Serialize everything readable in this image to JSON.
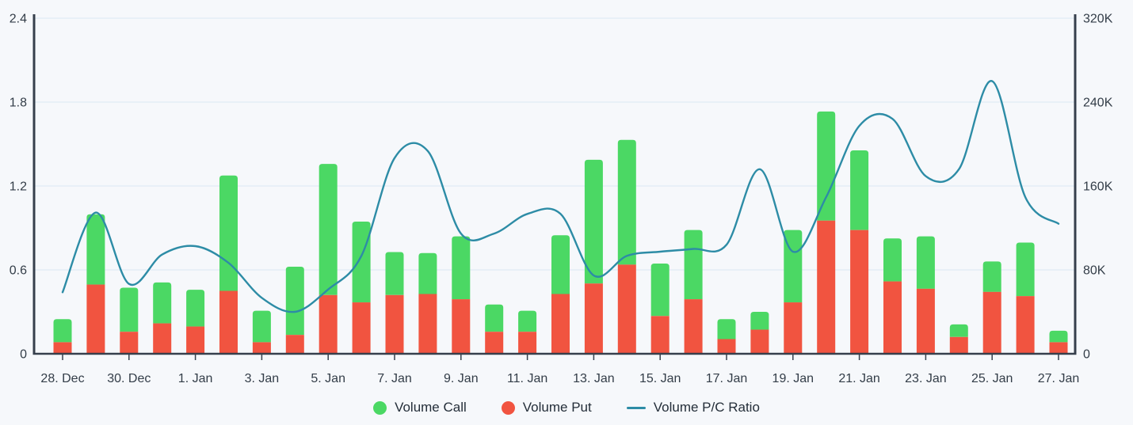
{
  "chart_data": {
    "type": "combo",
    "title": "",
    "categories": [
      "28. Dec",
      "29. Dec",
      "30. Dec",
      "31. Dec",
      "1. Jan",
      "2. Jan",
      "3. Jan",
      "4. Jan",
      "5. Jan",
      "6. Jan",
      "7. Jan",
      "8. Jan",
      "9. Jan",
      "10. Jan",
      "11. Jan",
      "12. Jan",
      "13. Jan",
      "14. Jan",
      "15. Jan",
      "16. Jan",
      "17. Jan",
      "18. Jan",
      "19. Jan",
      "20. Jan",
      "21. Jan",
      "22. Jan",
      "23. Jan",
      "24. Jan",
      "25. Jan",
      "26. Jan",
      "27. Jan"
    ],
    "x_tick_labels": [
      "28. Dec",
      "30. Dec",
      "1. Jan",
      "3. Jan",
      "5. Jan",
      "7. Jan",
      "9. Jan",
      "11. Jan",
      "13. Jan",
      "15. Jan",
      "17. Jan",
      "19. Jan",
      "21. Jan",
      "23. Jan",
      "25. Jan",
      "27. Jan"
    ],
    "series": [
      {
        "name": "Volume Call",
        "type": "bar",
        "stack": "volume",
        "axis": "right",
        "unit": "thousands",
        "color": "#4bd864",
        "values": [
          22,
          67,
          42,
          39,
          35,
          110,
          30,
          65,
          125,
          77,
          41,
          39,
          60,
          26,
          20,
          56,
          118,
          119,
          50,
          66,
          19,
          17,
          69,
          104,
          76,
          41,
          50,
          12,
          29,
          51,
          11
        ]
      },
      {
        "name": "Volume Put",
        "type": "bar",
        "stack": "volume",
        "axis": "right",
        "unit": "thousands",
        "color": "#f15440",
        "values": [
          11,
          66,
          21,
          29,
          26,
          60,
          11,
          18,
          56,
          49,
          56,
          57,
          52,
          21,
          21,
          57,
          67,
          85,
          36,
          52,
          14,
          23,
          49,
          127,
          118,
          69,
          62,
          16,
          59,
          55,
          11
        ]
      },
      {
        "name": "Volume P/C Ratio",
        "type": "line",
        "axis": "left",
        "color": "#2d8ca6",
        "values": [
          0.44,
          1.01,
          0.5,
          0.71,
          0.77,
          0.65,
          0.4,
          0.3,
          0.46,
          0.7,
          1.4,
          1.45,
          0.86,
          0.86,
          1.0,
          1.0,
          0.56,
          0.7,
          0.73,
          0.75,
          0.78,
          1.32,
          0.73,
          1.12,
          1.63,
          1.68,
          1.27,
          1.32,
          1.95,
          1.12,
          0.93
        ]
      }
    ],
    "left_axis": {
      "min": 0,
      "max": 2.4,
      "tick_labels": [
        "0",
        "0.6",
        "1.2",
        "1.8",
        "2.4"
      ]
    },
    "right_axis": {
      "min": 0,
      "max": 320000,
      "tick_labels": [
        "0",
        "80K",
        "160K",
        "240K",
        "320K"
      ]
    },
    "legend": [
      "Volume Call",
      "Volume Put",
      "Volume P/C Ratio"
    ],
    "grid": true,
    "legend_position": "bottom",
    "colors": {
      "background": "#f6f8fb",
      "gridline": "#e3edf6",
      "axis_line": "#363f4c",
      "tick_text": "#333d48",
      "call_green": "#4bd864",
      "put_red": "#f15440",
      "ratio_teal": "#2d8ca6"
    }
  }
}
